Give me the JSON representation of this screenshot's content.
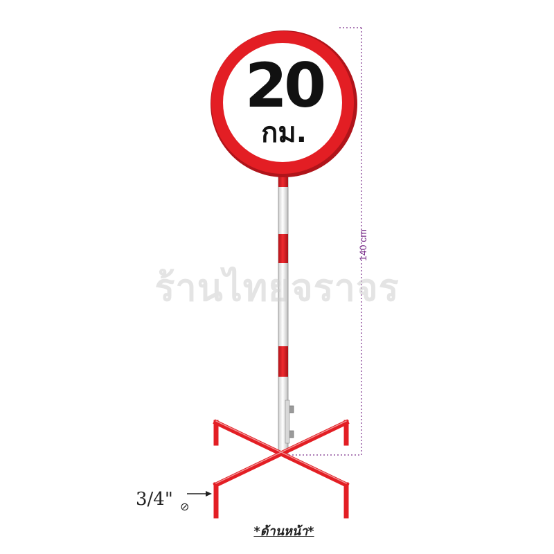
{
  "sign": {
    "number": "20",
    "unit": "กม.",
    "ring_color": "#e31e24",
    "pole_color": "#e31e24"
  },
  "dimension": {
    "height_label": "140 cm",
    "line_color": "#7a2f8a"
  },
  "base": {
    "pipe_size": "3/4\"",
    "pipe_symbol": "⊘"
  },
  "caption": "*ด้านหน้า*",
  "watermark": "ร้านไทยจราจร"
}
